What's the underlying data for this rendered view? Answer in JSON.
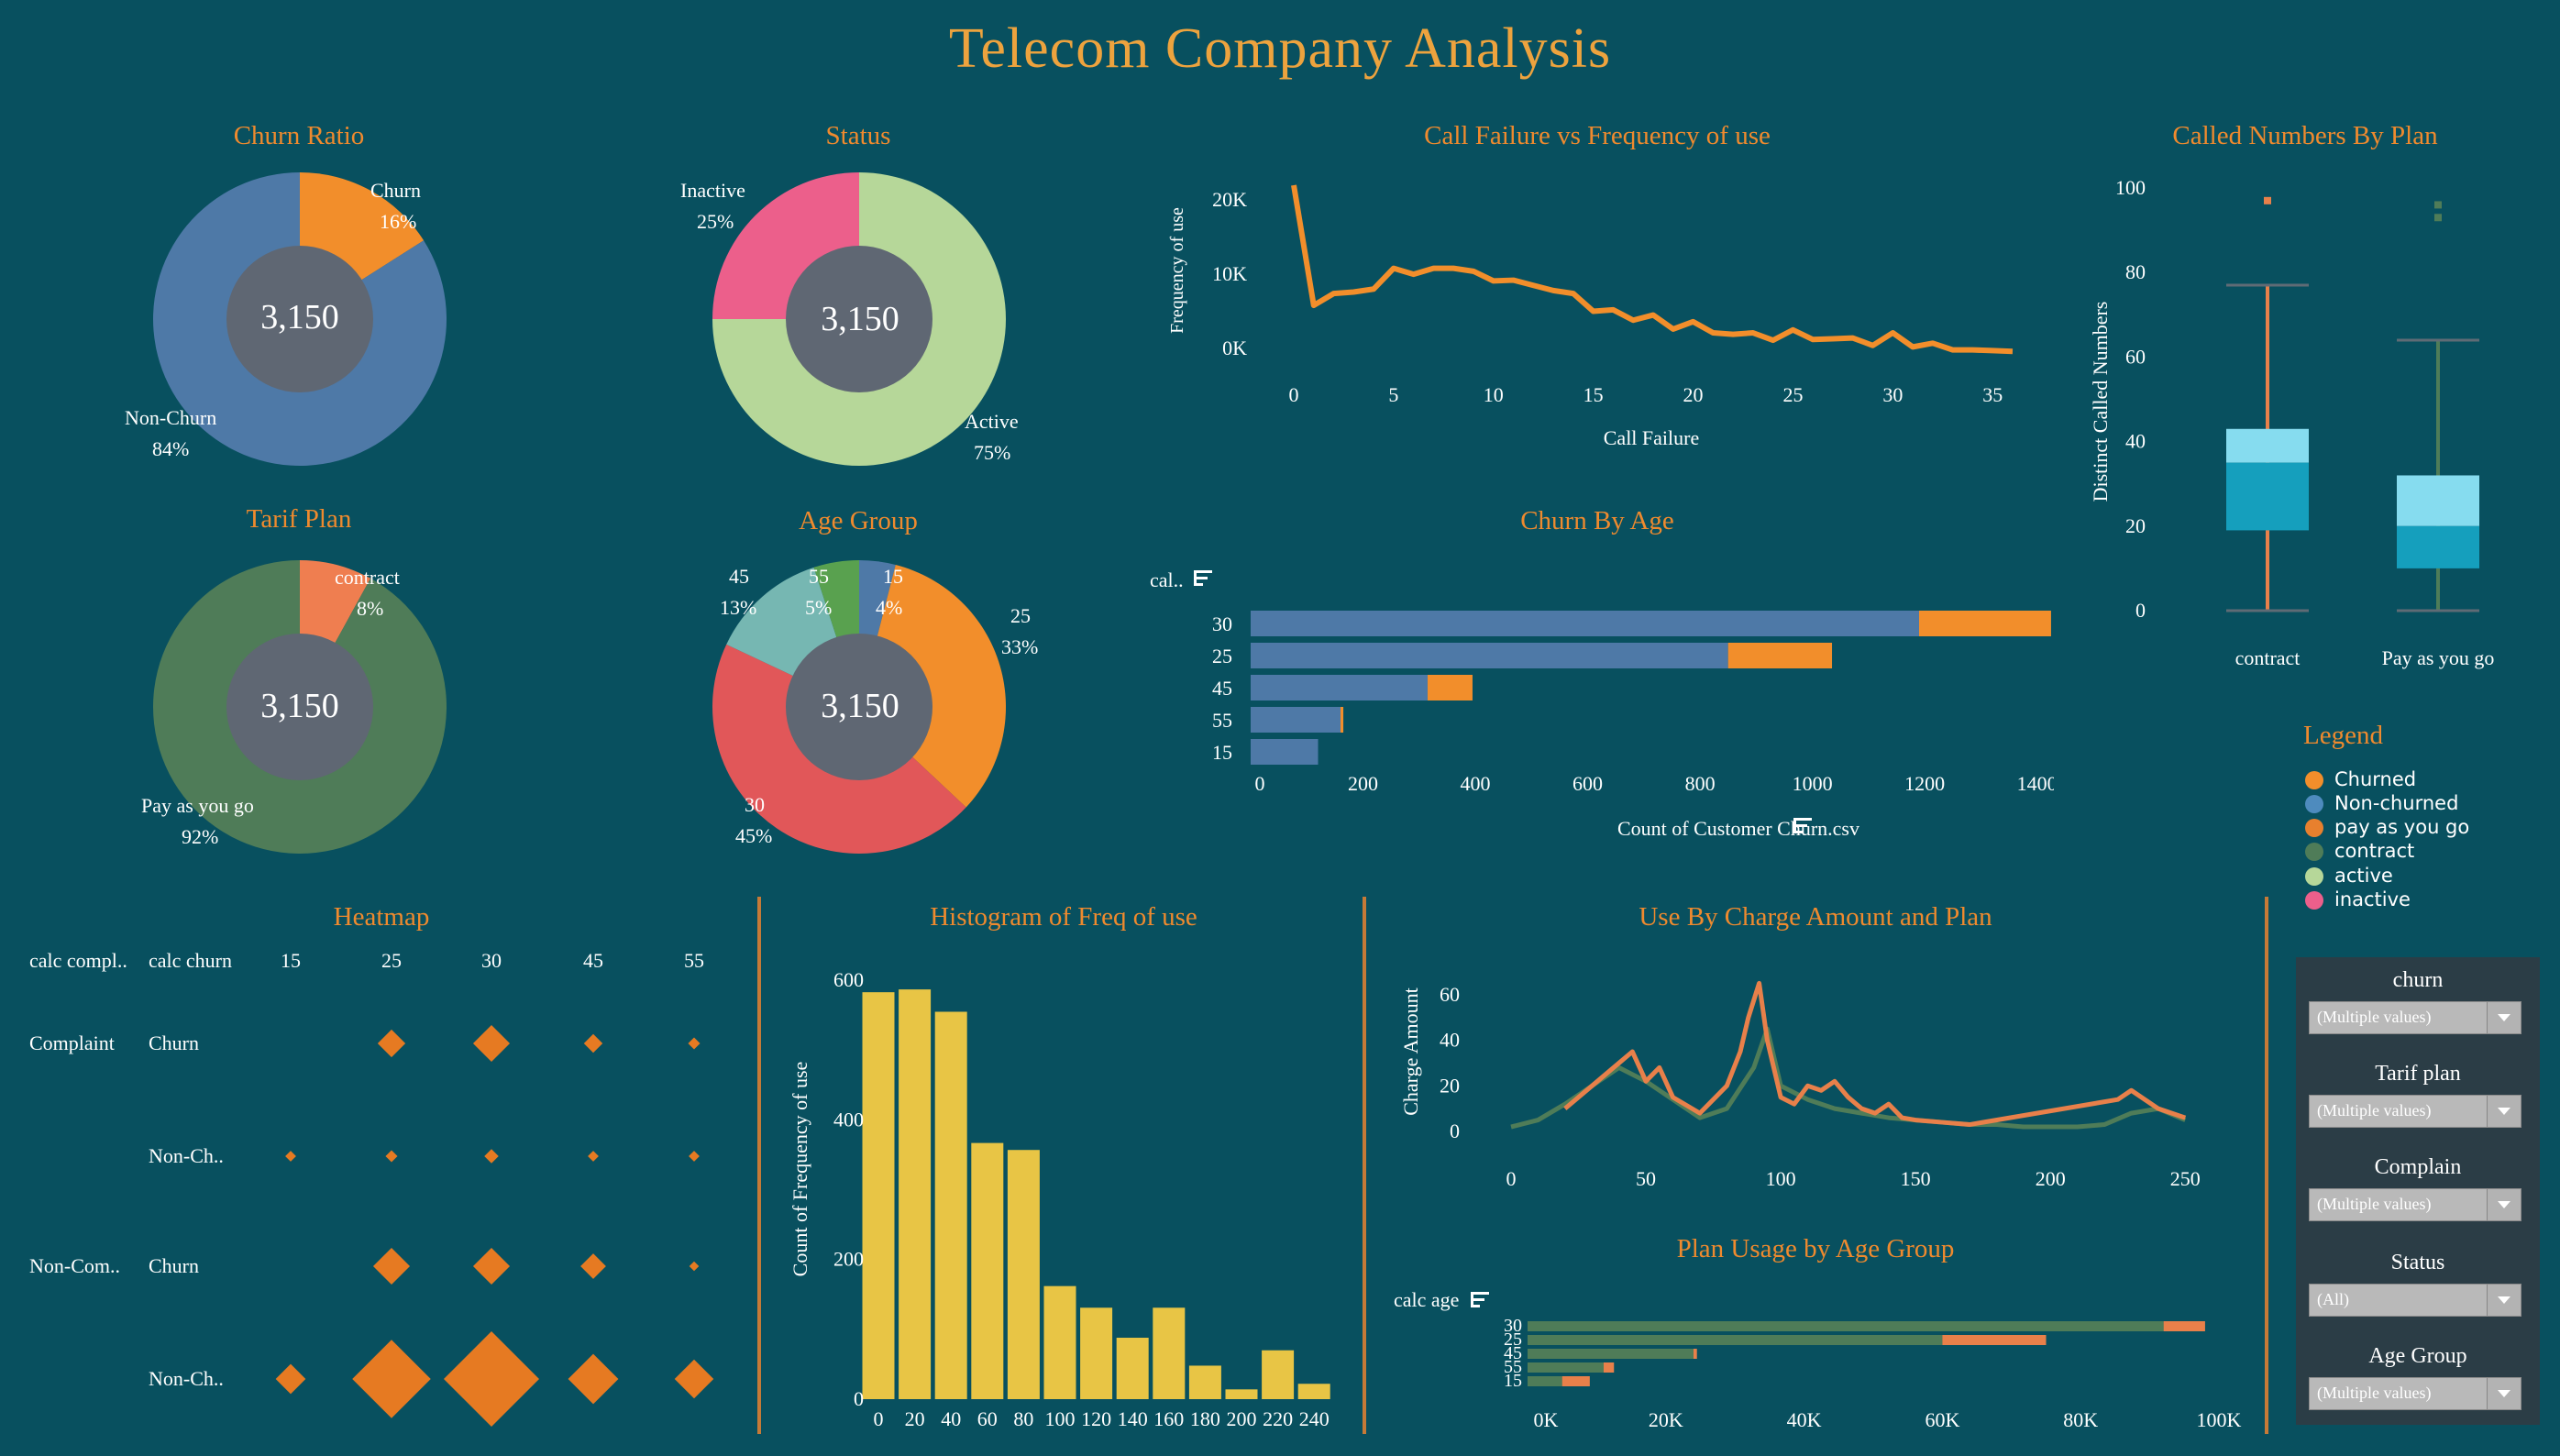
{
  "header": {
    "title": "Telecom Company Analysis"
  },
  "titles": {
    "churn_ratio": "Churn Ratio",
    "status": "Status",
    "call_failure": "Call Failure vs Frequency of use",
    "called_numbers": "Called Numbers By Plan",
    "tarif_plan": "Tarif Plan",
    "age_group": "Age Group",
    "churn_by_age": "Churn By Age",
    "heatmap": "Heatmap",
    "histogram": "Histogram of Freq of use",
    "use_by_charge": "Use By Charge Amount and Plan",
    "plan_usage": "Plan Usage by Age Group"
  },
  "donuts": {
    "churn_ratio": {
      "center": "3,150",
      "slices": [
        {
          "label": "Churn",
          "pct": "16%",
          "value": 16,
          "color": "#f28e2b"
        },
        {
          "label": "Non-Churn",
          "pct": "84%",
          "value": 84,
          "color": "#4e79a7"
        }
      ]
    },
    "status": {
      "center": "3,150",
      "slices": [
        {
          "label": "Active",
          "pct": "75%",
          "value": 75,
          "color": "#b6d799"
        },
        {
          "label": "Inactive",
          "pct": "25%",
          "value": 25,
          "color": "#ec5f8b"
        }
      ]
    },
    "tarif_plan": {
      "center": "3,150",
      "slices": [
        {
          "label": "contract",
          "pct": "8%",
          "value": 8,
          "color": "#ef7e50"
        },
        {
          "label": "Pay as you go",
          "pct": "92%",
          "value": 92,
          "color": "#4f7c58"
        }
      ]
    },
    "age_group": {
      "center": "3,150",
      "slices": [
        {
          "label": "15",
          "pct": "4%",
          "value": 4,
          "color": "#4e79a7"
        },
        {
          "label": "25",
          "pct": "33%",
          "value": 33,
          "color": "#f28e2b"
        },
        {
          "label": "30",
          "pct": "45%",
          "value": 45,
          "color": "#e15759"
        },
        {
          "label": "45",
          "pct": "13%",
          "value": 13,
          "color": "#76b7b2"
        },
        {
          "label": "55",
          "pct": "5%",
          "value": 5,
          "color": "#59a14f"
        }
      ]
    }
  },
  "chart_data": [
    {
      "id": "call_failure",
      "type": "line",
      "title": "Call Failure vs Frequency of use",
      "xlabel": "Call  Failure",
      "ylabel": "Frequency of use",
      "xlim": [
        0,
        36
      ],
      "ylim": [
        0,
        22000
      ],
      "xticks": [
        "0",
        "5",
        "10",
        "15",
        "20",
        "25",
        "30",
        "35"
      ],
      "yticks": [
        "0K",
        "10K",
        "20K"
      ],
      "x": [
        0,
        1,
        2,
        3,
        4,
        5,
        6,
        7,
        8,
        9,
        10,
        11,
        12,
        13,
        14,
        15,
        16,
        17,
        18,
        19,
        20,
        21,
        22,
        23,
        24,
        25,
        26,
        27,
        28,
        29,
        30,
        31,
        32,
        33,
        34,
        35,
        36
      ],
      "y": [
        22000,
        5800,
        7400,
        7600,
        8000,
        10800,
        10000,
        10800,
        10800,
        10400,
        9100,
        9200,
        8500,
        7800,
        7400,
        5000,
        5200,
        3800,
        4500,
        2600,
        3600,
        2100,
        1900,
        2100,
        1100,
        2500,
        1200,
        1300,
        1400,
        400,
        2100,
        200,
        700,
        -200,
        -200,
        -300,
        -400
      ],
      "color": "#f28e2b"
    },
    {
      "id": "called_numbers",
      "type": "boxplot",
      "title": "Called Numbers By Plan",
      "ylabel": "Distinct Called Numbers",
      "ylim": [
        0,
        100
      ],
      "yticks": [
        "0",
        "20",
        "40",
        "60",
        "80",
        "100"
      ],
      "categories": [
        "contract",
        "Pay as you go"
      ],
      "boxes": [
        {
          "min": 0,
          "q1": 19,
          "median": 35,
          "q3": 43,
          "max": 77,
          "outliers": [
            97
          ]
        },
        {
          "min": 0,
          "q1": 10,
          "median": 20,
          "q3": 32,
          "max": 64,
          "outliers": [
            93,
            96
          ]
        }
      ]
    },
    {
      "id": "churn_by_age",
      "type": "bar",
      "title": "Churn By Age",
      "xlabel": "Count of Customer Churn.csv",
      "ylabel": "cal..",
      "categories": [
        "30",
        "25",
        "45",
        "55",
        "15"
      ],
      "series": [
        {
          "name": "Non-churned",
          "values": [
            1190,
            850,
            315,
            160,
            120
          ],
          "color": "#4e79a7"
        },
        {
          "name": "Churned",
          "values": [
            235,
            185,
            80,
            5,
            0
          ],
          "color": "#f28e2b"
        }
      ],
      "xlim": [
        0,
        1430
      ],
      "xticks": [
        "0",
        "200",
        "400",
        "600",
        "800",
        "1000",
        "1200",
        "1400"
      ]
    },
    {
      "id": "heatmap",
      "type": "heatmap",
      "title": "Heatmap",
      "col_headers": [
        "calc compl..",
        "calc churn",
        "15",
        "25",
        "30",
        "45",
        "55"
      ],
      "columns": [
        "15",
        "25",
        "30",
        "45",
        "55"
      ],
      "rows": [
        {
          "group": "Complaint",
          "churn": "Churn",
          "values": [
            0,
            20,
            28,
            12,
            6
          ]
        },
        {
          "group": "",
          "churn": "Non-Ch..",
          "values": [
            5,
            6,
            8,
            5,
            5
          ]
        },
        {
          "group": "Non-Com..",
          "churn": "Churn",
          "values": [
            0,
            28,
            28,
            18,
            4
          ]
        },
        {
          "group": "",
          "churn": "Non-Ch..",
          "values": [
            22,
            65,
            80,
            40,
            30
          ]
        }
      ],
      "color": "#e67a22"
    },
    {
      "id": "histogram",
      "type": "bar",
      "title": "Histogram of Freq of use",
      "ylabel": "Count of Frequency of use",
      "categories": [
        "0",
        "20",
        "40",
        "60",
        "80",
        "100",
        "120",
        "140",
        "160",
        "180",
        "200",
        "220",
        "240"
      ],
      "values": [
        583,
        587,
        555,
        367,
        357,
        162,
        131,
        88,
        131,
        48,
        14,
        70,
        22
      ],
      "ylim": [
        0,
        620
      ],
      "yticks": [
        "0",
        "200",
        "400",
        "600"
      ],
      "color": "#e8c545"
    },
    {
      "id": "use_by_charge",
      "type": "line",
      "title": "Use By Charge Amount and Plan",
      "ylabel": "Charge  Amount",
      "xlim": [
        0,
        255
      ],
      "ylim": [
        0,
        70
      ],
      "xticks": [
        "0",
        "50",
        "100",
        "150",
        "200",
        "250"
      ],
      "yticks": [
        "0",
        "20",
        "40",
        "60"
      ],
      "series": [
        {
          "name": "pay as you go",
          "color": "#e8804a",
          "x": [
            20,
            30,
            40,
            45,
            50,
            55,
            60,
            70,
            80,
            85,
            88,
            92,
            95,
            98,
            100,
            105,
            110,
            115,
            120,
            125,
            130,
            135,
            140,
            145,
            150,
            160,
            170,
            225,
            230,
            240,
            250
          ],
          "y": [
            10,
            20,
            30,
            35,
            22,
            28,
            15,
            8,
            20,
            35,
            50,
            65,
            40,
            25,
            15,
            12,
            20,
            18,
            22,
            15,
            10,
            8,
            12,
            6,
            5,
            4,
            3,
            14,
            18,
            10,
            6
          ]
        },
        {
          "name": "contract",
          "color": "#4f7c58",
          "x": [
            0,
            10,
            20,
            30,
            40,
            50,
            60,
            70,
            80,
            90,
            95,
            100,
            110,
            120,
            130,
            140,
            150,
            160,
            170,
            180,
            190,
            200,
            210,
            220,
            230,
            240,
            250
          ],
          "y": [
            2,
            5,
            12,
            20,
            28,
            22,
            14,
            6,
            10,
            28,
            45,
            20,
            14,
            10,
            8,
            6,
            5,
            4,
            3,
            3,
            2,
            2,
            2,
            3,
            8,
            10,
            5
          ]
        }
      ]
    },
    {
      "id": "plan_usage",
      "type": "bar",
      "title": "Plan Usage by Age Group",
      "ylabel": "calc age",
      "categories": [
        "30",
        "25",
        "45",
        "55",
        "15"
      ],
      "series": [
        {
          "name": "contract",
          "values": [
            92000,
            60000,
            24000,
            11000,
            5000
          ],
          "color": "#4f7c58"
        },
        {
          "name": "pay as you go",
          "values": [
            6000,
            15000,
            500,
            1500,
            4000
          ],
          "color": "#e8804a"
        }
      ],
      "xlim": [
        0,
        100000
      ],
      "xticks": [
        "0K",
        "20K",
        "40K",
        "60K",
        "80K",
        "100K"
      ]
    }
  ],
  "legend": {
    "title": "Legend",
    "items": [
      {
        "label": "Churned",
        "color": "#f28e2b"
      },
      {
        "label": "Non-churned",
        "color": "#4e8bbe"
      },
      {
        "label": "pay as you go",
        "color": "#e8802e"
      },
      {
        "label": "contract",
        "color": "#4f7c58"
      },
      {
        "label": "active",
        "color": "#b6d799"
      },
      {
        "label": "inactive",
        "color": "#ec5f8b"
      }
    ]
  },
  "filters": [
    {
      "label": "churn",
      "value": "(Multiple values)"
    },
    {
      "label": "Tarif plan",
      "value": "(Multiple values)"
    },
    {
      "label": "Complain",
      "value": "(Multiple values)"
    },
    {
      "label": "Status",
      "value": "(All)"
    },
    {
      "label": "Age Group",
      "value": "(Multiple values)"
    }
  ]
}
